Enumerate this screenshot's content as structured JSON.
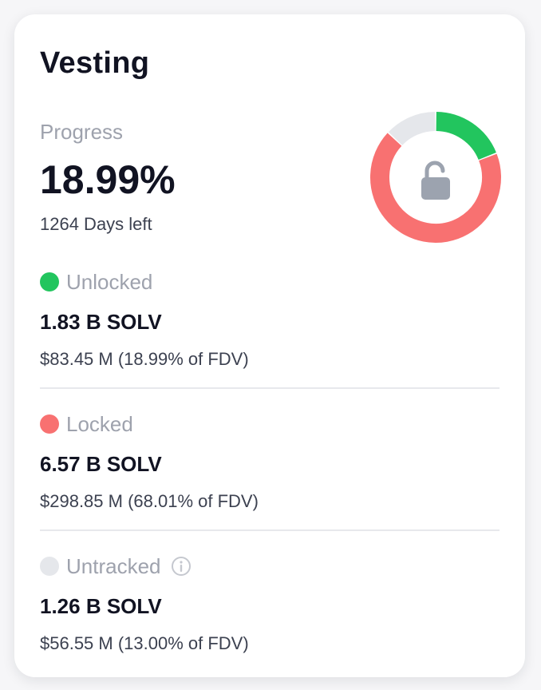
{
  "card": {
    "title": "Vesting",
    "progress_label": "Progress",
    "progress_value": "18.99%",
    "days_left": "1264 Days left",
    "donut": {
      "center_icon": "unlocked-padlock-icon",
      "segments": [
        {
          "name": "Unlocked",
          "percent": 18.99,
          "color": "#22c55e"
        },
        {
          "name": "Locked",
          "percent": 68.01,
          "color": "#f87171"
        },
        {
          "name": "Untracked",
          "percent": 13.0,
          "color": "#e5e7eb"
        }
      ]
    },
    "sections": [
      {
        "label": "Unlocked",
        "color": "#22c55e",
        "amount": "1.83 B SOLV",
        "usd": "$83.45 M (18.99% of FDV)"
      },
      {
        "label": "Locked",
        "color": "#f87171",
        "amount": "6.57 B SOLV",
        "usd": "$298.85 M (68.01% of FDV)"
      },
      {
        "label": "Untracked",
        "color": "#e5e7eb",
        "amount": "1.26 B SOLV",
        "usd": "$56.55 M (13.00% of FDV)",
        "icon": "info-icon"
      }
    ]
  }
}
